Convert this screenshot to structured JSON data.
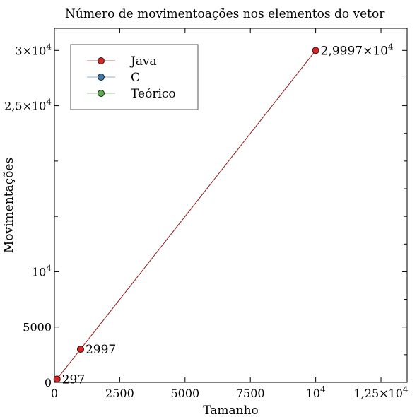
{
  "chart_data": {
    "type": "line",
    "title": "Número de movimentoações nos elementos do vetor",
    "xlabel": "Tamanho",
    "ylabel": "Movimentações",
    "xlim": [
      0,
      13500
    ],
    "ylim": [
      0,
      32000
    ],
    "grid": false,
    "legend_position": "top-left",
    "x_ticks": [
      {
        "value": 0,
        "label": "0"
      },
      {
        "value": 2500,
        "label": "2500"
      },
      {
        "value": 5000,
        "label": "5000"
      },
      {
        "value": 7500,
        "label": "7500"
      },
      {
        "value": 10000,
        "label": "10",
        "sup": "4"
      },
      {
        "value": 12500,
        "label": "1,25×10",
        "sup": "4"
      }
    ],
    "y_ticks": [
      {
        "value": 0,
        "label": "0"
      },
      {
        "value": 5000,
        "label": "5000"
      },
      {
        "value": 10000,
        "label": "10",
        "sup": "4"
      },
      {
        "value": 25000,
        "label": "2,5×10",
        "sup": "4"
      },
      {
        "value": 30000,
        "label": "3×10",
        "sup": "4"
      }
    ],
    "x_minor_ticks": [],
    "y_minor_ticks": [
      15000,
      20000
    ],
    "series": [
      {
        "name": "Java",
        "color": "#d62728",
        "line_color": "#8b1a1a",
        "x": [
          100,
          1000,
          10000
        ],
        "y": [
          297,
          2997,
          29997
        ]
      },
      {
        "name": "C",
        "color": "#3a78b0",
        "line_color": "#3a78b0",
        "x": [],
        "y": []
      },
      {
        "name": "Teórico",
        "color": "#5aae4c",
        "line_color": "#5aae4c",
        "x": [],
        "y": []
      }
    ],
    "annotations": [
      {
        "x": 100,
        "y": 297,
        "text": "297"
      },
      {
        "x": 1000,
        "y": 2997,
        "text": "2997"
      },
      {
        "x": 10000,
        "y": 29997,
        "text": "2,9997×10",
        "sup": "4"
      }
    ]
  }
}
